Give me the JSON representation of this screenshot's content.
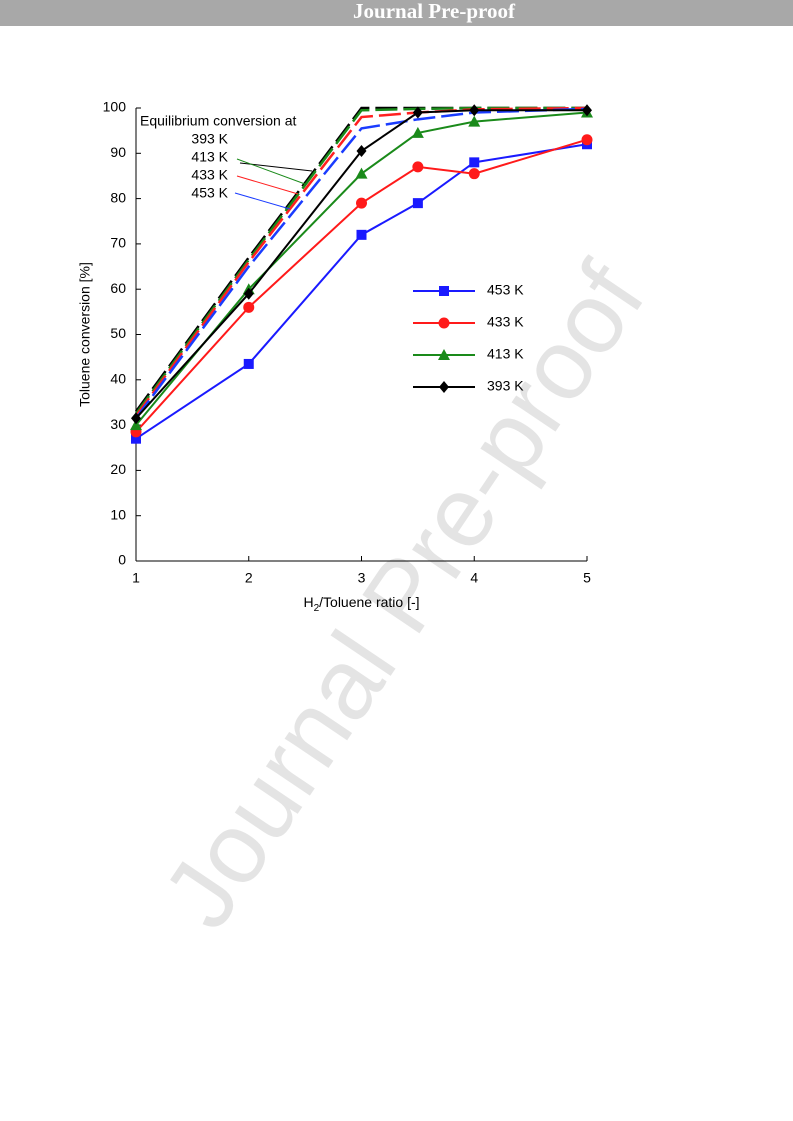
{
  "header": "Journal Pre-proof",
  "watermark": "Journal Pre-proof",
  "chart_data": {
    "type": "line",
    "y_label": "Toluene conversion [%]",
    "x_label": [
      "H",
      "2",
      "/Toluene ratio [-]"
    ],
    "x": [
      1,
      2,
      3,
      3.5,
      4,
      5
    ],
    "xlim": [
      1,
      5
    ],
    "xticks": [
      1,
      2,
      3,
      4,
      5
    ],
    "ylim": [
      0,
      100
    ],
    "yticks": [
      0,
      10,
      20,
      30,
      40,
      50,
      60,
      70,
      80,
      90,
      100
    ],
    "annotation": "Equilibrium conversion at",
    "equilibrium": [
      {
        "name": "393 K",
        "color": "#000000",
        "values": [
          33,
          67,
          100,
          100,
          100,
          100
        ]
      },
      {
        "name": "413 K",
        "color": "#1a8a1a",
        "values": [
          32.5,
          66.5,
          99.5,
          99.8,
          100,
          100
        ]
      },
      {
        "name": "433 K",
        "color": "#ff2020",
        "values": [
          32,
          66,
          98,
          99,
          99.7,
          100
        ]
      },
      {
        "name": "453 K",
        "color": "#1a3cff",
        "values": [
          31.5,
          65,
          95.5,
          97.5,
          99,
          99.8
        ]
      }
    ],
    "series": [
      {
        "name": "453 K",
        "color": "#1a1aff",
        "marker": "square",
        "values": [
          27,
          43.5,
          72,
          79,
          88,
          92
        ]
      },
      {
        "name": "433 K",
        "color": "#ff1a1a",
        "marker": "circle",
        "values": [
          28.5,
          56,
          79,
          87,
          85.5,
          93
        ]
      },
      {
        "name": "413 K",
        "color": "#1a8a1a",
        "marker": "triangle",
        "values": [
          30,
          60,
          85.5,
          94.5,
          97,
          99
        ]
      },
      {
        "name": "393 K",
        "color": "#000000",
        "marker": "diamond",
        "values": [
          31.5,
          59,
          90.5,
          99,
          99.5,
          99.5
        ]
      }
    ]
  }
}
